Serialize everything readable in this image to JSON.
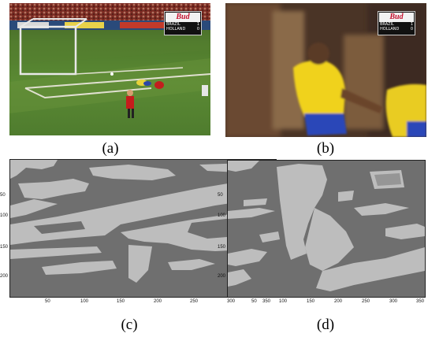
{
  "figures": [
    {
      "caption": "(a)",
      "scorebug": {
        "brand": "Bud",
        "team1": "BRAZIL",
        "team2": "HOLLAND",
        "score1": "1",
        "score2": "0"
      }
    },
    {
      "caption": "(b)",
      "scorebug": {
        "brand": "Bud",
        "team1": "BRAZIL",
        "team2": "HOLLAND",
        "score1": "1",
        "score2": "0"
      }
    },
    {
      "caption": "(c)"
    },
    {
      "caption": "(d)"
    }
  ],
  "chart_data": [
    {
      "type": "heatmap",
      "panel": "(c)",
      "xticks": [
        "50",
        "100",
        "150",
        "200",
        "250",
        "300",
        "350"
      ],
      "yticks": [
        "50",
        "100",
        "150",
        "200"
      ],
      "xlim": [
        0,
        352
      ],
      "ylim": [
        0,
        240
      ],
      "colors": {
        "background": "#6f6f6f",
        "foreground": "#bdbdbd"
      }
    },
    {
      "type": "heatmap",
      "panel": "(d)",
      "xticks": [
        "50",
        "100",
        "150",
        "200",
        "250",
        "300",
        "350"
      ],
      "yticks": [
        "50",
        "100",
        "150",
        "200"
      ],
      "xlim": [
        0,
        352
      ],
      "ylim": [
        0,
        240
      ],
      "colors": {
        "background": "#6f6f6f",
        "foreground": "#bdbdbd"
      }
    }
  ]
}
